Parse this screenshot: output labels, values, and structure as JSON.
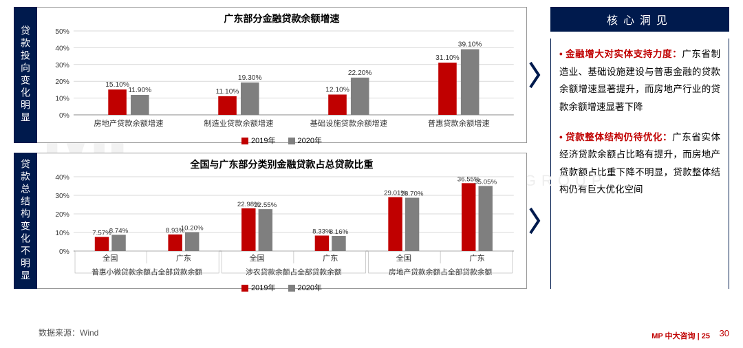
{
  "page_number": "30",
  "source_label": "数据来源：Wind",
  "brand": "MP 中大咨询 | 25",
  "watermark": "MP",
  "watermark2": "MANAGEMENT PROFESSIONAL GROUP",
  "colors": {
    "series_2019": "#c00000",
    "series_2020": "#7f7f7f",
    "navy": "#001a4d",
    "axis": "#888888",
    "grid": "#d9d9d9",
    "text": "#333333"
  },
  "insight": {
    "header": "核心洞见",
    "items": [
      {
        "lead": "金融增大对实体支持力度：",
        "body": "广东省制造业、基础设施建设与普惠金融的贷款余额增速显著提升，而房地产行业的贷款余额增速显著下降"
      },
      {
        "lead": "贷款整体结构仍待优化：",
        "body": "广东省实体经济贷款余额占比略有提升，而房地产贷款额占比重下降不明显，贷款整体结构仍有巨大优化空间"
      }
    ]
  },
  "chart1": {
    "vlabel": "贷款投向变化明显",
    "title": "广东部分金融贷款余额增速",
    "type": "bar",
    "y_max": 50,
    "y_ticks": [
      0,
      10,
      20,
      30,
      40,
      50
    ],
    "y_tick_labels": [
      "0%",
      "10%",
      "20%",
      "30%",
      "40%",
      "50%"
    ],
    "categories": [
      "房地产贷款余额增速",
      "制造业贷款余额增速",
      "基础设施贷款余额增速",
      "普惠贷款余额增速"
    ],
    "series": [
      {
        "name": "2019年",
        "color": "#c00000",
        "values": [
          15.1,
          11.1,
          12.1,
          31.1
        ],
        "labels": [
          "15.10%",
          "11.10%",
          "12.10%",
          "31.10%"
        ]
      },
      {
        "name": "2020年",
        "color": "#7f7f7f",
        "values": [
          11.9,
          19.3,
          22.2,
          39.1
        ],
        "labels": [
          "11.90%",
          "19.30%",
          "22.20%",
          "39.10%"
        ]
      }
    ],
    "legend": [
      "2019年",
      "2020年"
    ]
  },
  "chart2": {
    "vlabel": "贷款总结构变化不明显",
    "title": "全国与广东部分类别金融贷款占总贷款比重",
    "type": "grouped-bar",
    "y_max": 40,
    "y_ticks": [
      0,
      10,
      20,
      30,
      40
    ],
    "y_tick_labels": [
      "0%",
      "10%",
      "20%",
      "30%",
      "40%"
    ],
    "super_categories": [
      "普惠小微贷款余额占全部贷款余额",
      "涉农贷款余额占全部贷款余额",
      "房地产贷款余额占全部贷款余额"
    ],
    "sub_categories": [
      "全国",
      "广东"
    ],
    "series": [
      {
        "name": "2019年",
        "color": "#c00000",
        "values": [
          7.57,
          8.93,
          22.98,
          8.33,
          29.01,
          36.55
        ],
        "labels": [
          "7.57%",
          "8.93%",
          "22.98%",
          "8.33%",
          "29.01%",
          "36.55%"
        ]
      },
      {
        "name": "2020年",
        "color": "#7f7f7f",
        "values": [
          8.74,
          10.2,
          22.55,
          8.16,
          28.7,
          35.05
        ],
        "labels": [
          "8.74%",
          "10.20%",
          "22.55%",
          "8.16%",
          "28.70%",
          "35.05%"
        ]
      }
    ],
    "legend": [
      "2019年",
      "2020年"
    ]
  }
}
